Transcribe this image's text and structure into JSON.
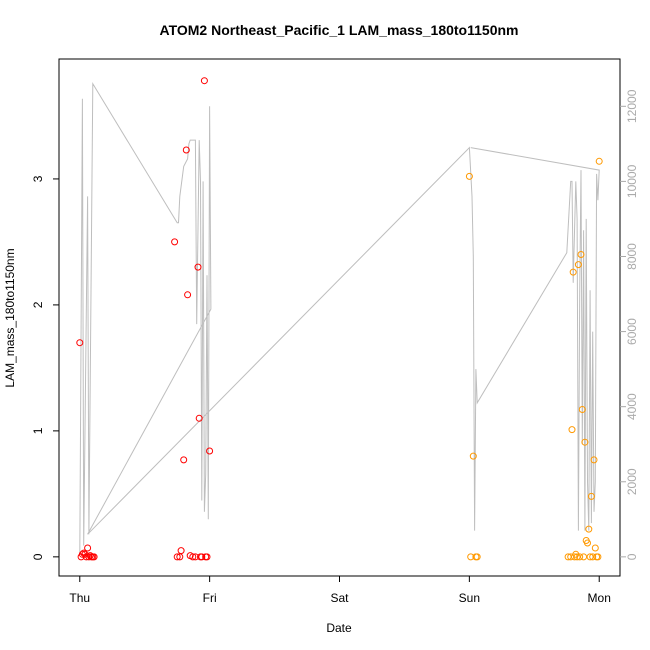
{
  "chart_data": {
    "type": "scatter",
    "title": "ATOM2 Northeast_Pacific_1 LAM_mass_180to1150nm",
    "xlabel": "Date",
    "ylabel": "LAM_mass_180to1150nm",
    "x_tick_labels": [
      "Thu",
      "Fri",
      "Sat",
      "Sun",
      "Mon"
    ],
    "x_unit": "days from Thu 00:00",
    "xlim": [
      -0.2,
      4.1
    ],
    "ylim": [
      0,
      3.8
    ],
    "y_ticks": [
      0,
      1,
      2,
      3
    ],
    "y2lim": [
      0,
      12750
    ],
    "y2_ticks": [
      0,
      2000,
      4000,
      6000,
      8000,
      10000,
      12000
    ],
    "grid": false,
    "colors": {
      "scatter_red": "#ff0000",
      "scatter_orange": "#ff9900",
      "line": "#bebebe",
      "y2_axis": "#aaaaaa"
    },
    "series": [
      {
        "kind": "scatter",
        "color": "#ff0000",
        "points": [
          [
            0.0,
            1.7
          ],
          [
            0.01,
            0.0
          ],
          [
            0.02,
            0.02
          ],
          [
            0.03,
            0.03
          ],
          [
            0.04,
            0.02
          ],
          [
            0.05,
            0.0
          ],
          [
            0.06,
            0.07
          ],
          [
            0.07,
            0.0
          ],
          [
            0.08,
            0.01
          ],
          [
            0.09,
            0.0
          ],
          [
            0.1,
            0.0
          ],
          [
            0.11,
            0.0
          ],
          [
            0.73,
            2.5
          ],
          [
            0.75,
            0.0
          ],
          [
            0.77,
            0.0
          ],
          [
            0.78,
            0.05
          ],
          [
            0.8,
            0.77
          ],
          [
            0.82,
            3.23
          ],
          [
            0.83,
            2.08
          ],
          [
            0.85,
            0.01
          ],
          [
            0.87,
            0.0
          ],
          [
            0.89,
            0.0
          ],
          [
            0.91,
            2.3
          ],
          [
            0.92,
            1.1
          ],
          [
            0.93,
            0.0
          ],
          [
            0.94,
            0.0
          ],
          [
            0.96,
            3.78
          ],
          [
            0.97,
            0.0
          ],
          [
            0.98,
            0.0
          ],
          [
            1.0,
            0.84
          ]
        ]
      },
      {
        "kind": "scatter",
        "color": "#ff9900",
        "points": [
          [
            3.0,
            3.02
          ],
          [
            3.01,
            0.0
          ],
          [
            3.03,
            0.8
          ],
          [
            3.05,
            0.0
          ],
          [
            3.06,
            0.0
          ],
          [
            3.76,
            0.0
          ],
          [
            3.78,
            0.0
          ],
          [
            3.79,
            1.01
          ],
          [
            3.8,
            2.26
          ],
          [
            3.81,
            0.0
          ],
          [
            3.82,
            0.02
          ],
          [
            3.83,
            0.0
          ],
          [
            3.84,
            2.32
          ],
          [
            3.85,
            0.0
          ],
          [
            3.86,
            2.4
          ],
          [
            3.87,
            1.17
          ],
          [
            3.88,
            0.0
          ],
          [
            3.89,
            0.91
          ],
          [
            3.9,
            0.13
          ],
          [
            3.91,
            0.11
          ],
          [
            3.92,
            0.22
          ],
          [
            3.93,
            0.0
          ],
          [
            3.94,
            0.48
          ],
          [
            3.95,
            0.0
          ],
          [
            3.96,
            0.77
          ],
          [
            3.97,
            0.07
          ],
          [
            3.98,
            0.0
          ],
          [
            3.99,
            0.0
          ],
          [
            4.0,
            3.14
          ]
        ]
      },
      {
        "kind": "line",
        "color": "#bebebe",
        "axis": "right",
        "points": [
          [
            0.0,
            50
          ],
          [
            0.02,
            12200
          ],
          [
            0.03,
            300
          ],
          [
            0.06,
            9600
          ],
          [
            0.07,
            600
          ],
          [
            0.1,
            12600
          ],
          [
            0.75,
            8900
          ],
          [
            0.76,
            8900
          ],
          [
            0.77,
            9600
          ],
          [
            0.8,
            10400
          ],
          [
            0.83,
            10600
          ],
          [
            0.84,
            11000
          ],
          [
            0.85,
            11100
          ],
          [
            0.89,
            11100
          ],
          [
            0.9,
            6200
          ],
          [
            0.92,
            11100
          ],
          [
            0.93,
            10000
          ],
          [
            0.94,
            1500
          ],
          [
            0.95,
            10000
          ],
          [
            0.96,
            1200
          ],
          [
            0.97,
            2200
          ],
          [
            0.98,
            7500
          ],
          [
            0.99,
            1000
          ],
          [
            1.0,
            12000
          ],
          [
            1.01,
            6600
          ],
          [
            0.06,
            600
          ],
          [
            3.0,
            10900
          ],
          [
            3.02,
            9600
          ],
          [
            3.03,
            8000
          ],
          [
            3.04,
            700
          ],
          [
            3.05,
            5000
          ],
          [
            3.06,
            4100
          ],
          [
            3.75,
            8100
          ],
          [
            3.78,
            10000
          ],
          [
            3.79,
            10000
          ],
          [
            3.8,
            7300
          ],
          [
            3.82,
            10000
          ],
          [
            3.83,
            9000
          ],
          [
            3.84,
            700
          ],
          [
            3.85,
            7000
          ],
          [
            3.86,
            10300
          ],
          [
            3.87,
            3000
          ],
          [
            3.88,
            8700
          ],
          [
            3.89,
            700
          ],
          [
            3.9,
            9000
          ],
          [
            3.91,
            2000
          ],
          [
            3.92,
            700
          ],
          [
            3.93,
            7100
          ],
          [
            3.94,
            900
          ],
          [
            3.95,
            6000
          ],
          [
            3.96,
            1200
          ],
          [
            3.97,
            2000
          ],
          [
            3.98,
            10200
          ],
          [
            3.99,
            9500
          ],
          [
            4.0,
            10300
          ],
          [
            3.01,
            10900
          ]
        ]
      }
    ]
  }
}
